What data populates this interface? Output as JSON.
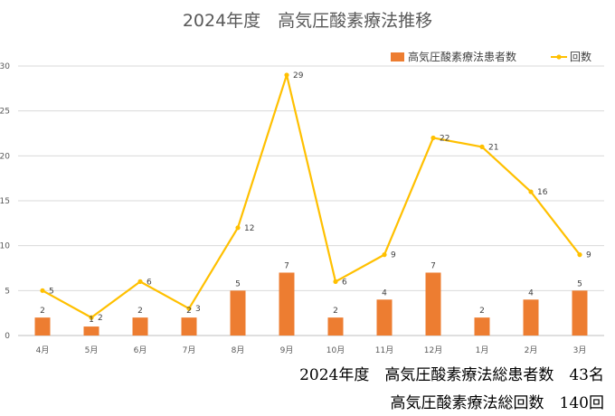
{
  "chart_data": {
    "type": "bar+line",
    "title": "2024年度　高気圧酸素療法推移",
    "categories": [
      "4月",
      "5月",
      "6月",
      "7月",
      "8月",
      "9月",
      "10月",
      "11月",
      "12月",
      "1月",
      "2月",
      "3月"
    ],
    "series": [
      {
        "name": "高気圧酸素療法患者数",
        "type": "bar",
        "color": "#ED7D31",
        "values": [
          2,
          1,
          2,
          2,
          5,
          7,
          2,
          4,
          7,
          2,
          4,
          5
        ]
      },
      {
        "name": "回数",
        "type": "line",
        "color": "#FFC000",
        "values": [
          5,
          2,
          6,
          3,
          12,
          29,
          6,
          9,
          22,
          21,
          16,
          9
        ]
      }
    ],
    "ylim": [
      0,
      30
    ],
    "yticks": [
      0,
      5,
      10,
      15,
      20,
      25,
      30
    ],
    "grid": true,
    "legend": "top-right"
  },
  "summary": {
    "line1": "2024年度　高気圧酸素療法総患者数　43名",
    "line2": "高気圧酸素療法総回数　140回"
  }
}
